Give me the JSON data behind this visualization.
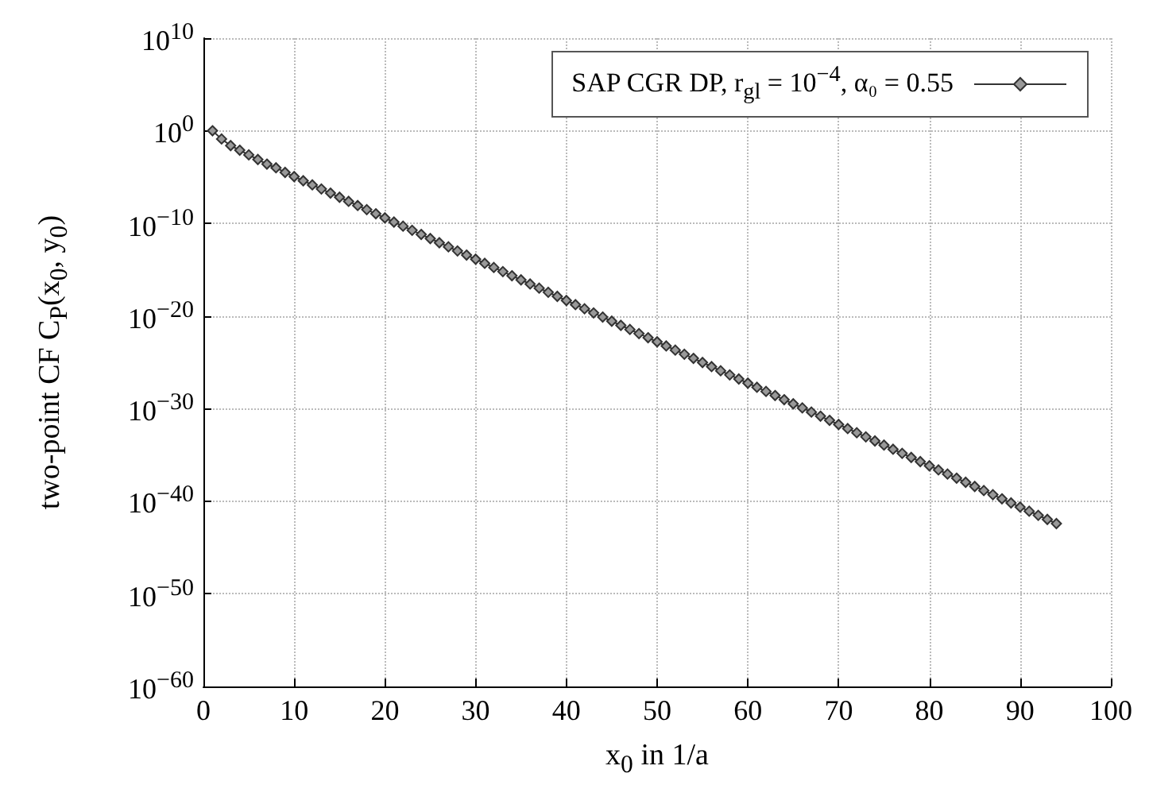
{
  "chart_data": {
    "type": "line",
    "xlabel": "x$_{0}$ in 1/a",
    "ylabel": "two-point CF C$_{P}$(x$_{0}$, y$_{0}$)",
    "x": [
      1,
      2,
      3,
      4,
      5,
      6,
      7,
      8,
      9,
      10,
      11,
      12,
      13,
      14,
      15,
      16,
      17,
      18,
      19,
      20,
      21,
      22,
      23,
      24,
      25,
      26,
      27,
      28,
      29,
      30,
      31,
      32,
      33,
      34,
      35,
      36,
      37,
      38,
      39,
      40,
      41,
      42,
      43,
      44,
      45,
      46,
      47,
      48,
      49,
      50,
      51,
      52,
      53,
      54,
      55,
      56,
      57,
      58,
      59,
      60,
      61,
      62,
      63,
      64,
      65,
      66,
      67,
      68,
      69,
      70,
      71,
      72,
      73,
      74,
      75,
      76,
      77,
      78,
      79,
      80,
      81,
      82,
      83,
      84,
      85,
      86,
      87,
      88,
      89,
      90,
      91,
      92,
      93,
      94
    ],
    "series": [
      {
        "name": "SAP CGR DP, r$_{gl}$ = 10$^{−4}$, α₀ = 0.55",
        "color": "#333333",
        "values": [
          1,
          0.13,
          0.025,
          0.0079,
          0.0025,
          0.00079,
          0.00025,
          0.0001,
          3.2e-05,
          1.12e-05,
          4.02e-06,
          1.44e-06,
          5.15e-07,
          1.85e-07,
          6.61e-08,
          2.37e-08,
          8.47e-09,
          3.03e-09,
          1.09e-09,
          3.89e-10,
          1.39e-10,
          4.99e-11,
          1.79e-11,
          6.4e-12,
          2.29e-12,
          8.2e-13,
          2.94e-13,
          1.05e-13,
          3.77e-14,
          1.35e-14,
          4.83e-15,
          1.73e-15,
          6.2e-16,
          2.22e-16,
          7.94e-17,
          2.84e-17,
          1.02e-17,
          3.65e-18,
          1.31e-18,
          4.67e-19,
          1.68e-19,
          6e-20,
          2.15e-20,
          7.68e-21,
          2.75e-21,
          9.8e-22,
          3.53e-22,
          1.26e-22,
          4.52e-23,
          1.62e-23,
          5.8e-24,
          2.08e-24,
          7.44e-25,
          2.66e-25,
          9.5e-26,
          3.42e-26,
          1.22e-26,
          4.38e-27,
          1.57e-27,
          5.6e-28,
          2.01e-28,
          7.2e-29,
          2.58e-29,
          9.2e-30,
          3.31e-30,
          1.19e-30,
          4.24e-31,
          1.52e-31,
          5.4e-32,
          1.95e-32,
          6.97e-33,
          2.49e-33,
          8.9e-34,
          3.2e-34,
          1.15e-34,
          4.1e-35,
          1.47e-35,
          5.3e-36,
          1.89e-36,
          6.75e-37,
          2.41e-37,
          8.6e-38,
          3.1e-38,
          1.11e-38,
          3.97e-39,
          1.43e-39,
          5.1e-40,
          1.83e-40,
          6.5e-41,
          2.34e-41,
          8.4e-42,
          3e-42,
          1.08e-42,
          3.85e-43
        ]
      }
    ],
    "xlim": [
      0,
      100
    ],
    "xticks": [
      0,
      10,
      20,
      30,
      40,
      50,
      60,
      70,
      80,
      90,
      100
    ],
    "ylim": [
      1e-60,
      10000000000.0
    ],
    "yticks": [
      {
        "value": 1e-60,
        "label": "10$^{−60}$"
      },
      {
        "value": 1e-50,
        "label": "10$^{−50}$"
      },
      {
        "value": 1e-40,
        "label": "10$^{−40}$"
      },
      {
        "value": 1e-30,
        "label": "10$^{−30}$"
      },
      {
        "value": 1e-20,
        "label": "10$^{−20}$"
      },
      {
        "value": 1e-10,
        "label": "10$^{−10}$"
      },
      {
        "value": 1,
        "label": "10$^{0}$"
      },
      {
        "value": 10000000000.0,
        "label": "10$^{10}$"
      }
    ],
    "log": "y",
    "grid": true,
    "legend": "top right",
    "marker": "diamond",
    "line_style": "solid"
  }
}
